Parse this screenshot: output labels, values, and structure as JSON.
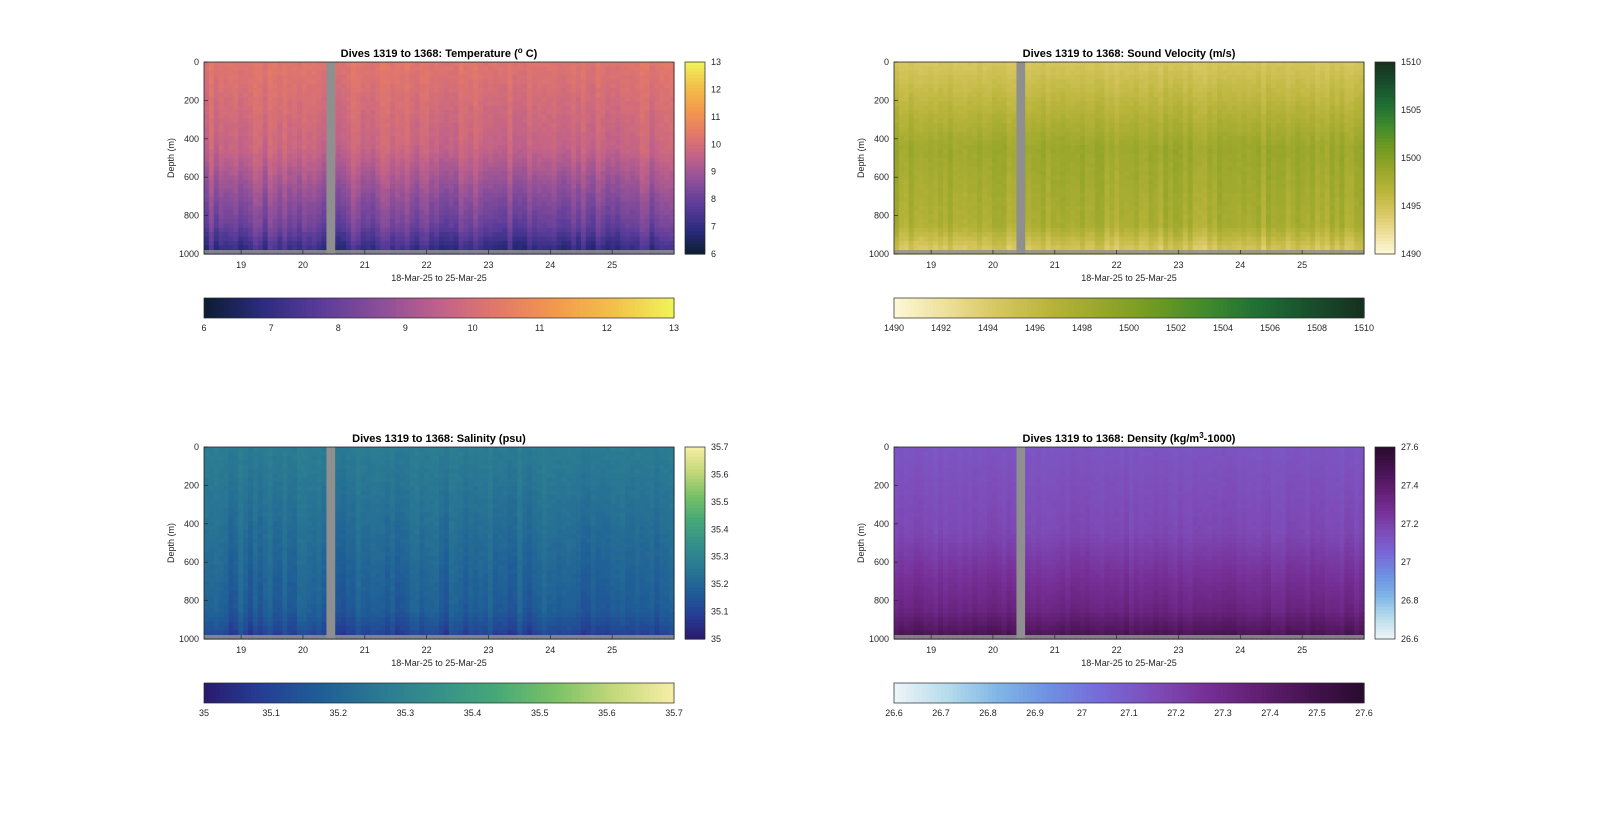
{
  "colors": {
    "nan": "#8f8f8f",
    "axis": "#262626"
  },
  "chart_data": [
    {
      "type": "heatmap",
      "title": "Dives 1319 to 1368: Temperature (o C)",
      "title_parts": {
        "pre": "Dives 1319 to 1368: Temperature (",
        "sup": "o",
        "post": " C)"
      },
      "xlabel": "18-Mar-25 to 25-Mar-25",
      "ylabel": "Depth (m)",
      "x_ticks": [
        "19",
        "20",
        "21",
        "22",
        "23",
        "24",
        "25"
      ],
      "x_range_days": [
        18.4,
        26.0
      ],
      "y_ticks": [
        "0",
        "200",
        "400",
        "600",
        "800",
        "1000"
      ],
      "ylim": [
        0,
        1000
      ],
      "gap_days": [
        20.38,
        20.52
      ],
      "colorbar_ticks": [
        "6",
        "7",
        "8",
        "9",
        "10",
        "11",
        "12",
        "13"
      ],
      "clim": [
        6,
        13
      ],
      "colormap": [
        "#0b1d32",
        "#2c2b7e",
        "#5b3c9a",
        "#8b4e9a",
        "#c0618a",
        "#e3786a",
        "#f39a4c",
        "#f2c14a",
        "#f0f45a"
      ],
      "profile": {
        "surface": 10.3,
        "mid": 9.7,
        "deep": 8.1,
        "bottom": 6.9,
        "variation": 0.35
      }
    },
    {
      "type": "heatmap",
      "title": "Dives 1319 to 1368: Sound Velocity (m/s)",
      "title_parts": {
        "pre": "Dives 1319 to 1368: Sound Velocity (m/s)",
        "sup": "",
        "post": ""
      },
      "xlabel": "18-Mar-25 to 25-Mar-25",
      "ylabel": "Depth (m)",
      "x_ticks": [
        "19",
        "20",
        "21",
        "22",
        "23",
        "24",
        "25"
      ],
      "x_range_days": [
        18.4,
        26.0
      ],
      "y_ticks": [
        "0",
        "200",
        "400",
        "600",
        "800",
        "1000"
      ],
      "ylim": [
        0,
        1000
      ],
      "gap_days": [
        20.38,
        20.52
      ],
      "colorbar_ticks": [
        "1490",
        "1492",
        "1494",
        "1496",
        "1498",
        "1500",
        "1502",
        "1504",
        "1506",
        "1508",
        "1510"
      ],
      "side_colorbar_ticks": [
        "1490",
        "1495",
        "1500",
        "1505",
        "1510"
      ],
      "clim": [
        1490,
        1510
      ],
      "colormap": [
        "#fdf8d8",
        "#eedf9a",
        "#d6c65e",
        "#b8b43a",
        "#97a62a",
        "#6f9a22",
        "#3f8a2c",
        "#1f6e34",
        "#184e2c",
        "#16301e"
      ],
      "profile": {
        "surface": 1494.5,
        "mid": 1498.5,
        "deep": 1497.5,
        "bottom": 1494.0,
        "variation": 0.8
      }
    },
    {
      "type": "heatmap",
      "title": "Dives 1319 to 1368: Salinity (psu)",
      "title_parts": {
        "pre": "Dives 1319 to 1368: Salinity (psu)",
        "sup": "",
        "post": ""
      },
      "xlabel": "18-Mar-25 to 25-Mar-25",
      "ylabel": "Depth (m)",
      "x_ticks": [
        "19",
        "20",
        "21",
        "22",
        "23",
        "24",
        "25"
      ],
      "x_range_days": [
        18.4,
        26.0
      ],
      "y_ticks": [
        "0",
        "200",
        "400",
        "600",
        "800",
        "1000"
      ],
      "ylim": [
        0,
        1000
      ],
      "gap_days": [
        20.38,
        20.52
      ],
      "colorbar_ticks": [
        "35",
        "35.1",
        "35.2",
        "35.3",
        "35.4",
        "35.5",
        "35.6",
        "35.7"
      ],
      "clim": [
        35,
        35.7
      ],
      "colormap": [
        "#2a1a6e",
        "#253f95",
        "#1f5e97",
        "#2a7a93",
        "#35918a",
        "#47a977",
        "#7cc266",
        "#c5d97a",
        "#f7eea6"
      ],
      "profile": {
        "surface": 35.27,
        "mid": 35.22,
        "deep": 35.17,
        "bottom": 35.09,
        "variation": 0.03
      }
    },
    {
      "type": "heatmap",
      "title": "Dives 1319 to 1368: Density (kg/m3-1000)",
      "title_parts": {
        "pre": "Dives 1319 to 1368: Density (kg/m",
        "sup": "3",
        "post": "-1000)"
      },
      "xlabel": "18-Mar-25 to 25-Mar-25",
      "ylabel": "Depth (m)",
      "x_ticks": [
        "19",
        "20",
        "21",
        "22",
        "23",
        "24",
        "25"
      ],
      "x_range_days": [
        18.4,
        26.0
      ],
      "y_ticks": [
        "0",
        "200",
        "400",
        "600",
        "800",
        "1000"
      ],
      "ylim": [
        0,
        1000
      ],
      "gap_days": [
        20.38,
        20.52
      ],
      "colorbar_ticks": [
        "26.6",
        "26.7",
        "26.8",
        "26.9",
        "27",
        "27.1",
        "27.2",
        "27.3",
        "27.4",
        "27.5",
        "27.6"
      ],
      "side_colorbar_ticks": [
        "26.6",
        "26.8",
        "27",
        "27.2",
        "27.4",
        "27.6"
      ],
      "clim": [
        26.6,
        27.6
      ],
      "colormap": [
        "#eef6f8",
        "#b8dcec",
        "#7fb6e6",
        "#6e8fe2",
        "#7868d8",
        "#7e4cb8",
        "#762f96",
        "#611e72",
        "#45124f",
        "#2a0a2e"
      ],
      "profile": {
        "surface": 27.12,
        "mid": 27.17,
        "deep": 27.33,
        "bottom": 27.48,
        "variation": 0.02
      }
    }
  ]
}
